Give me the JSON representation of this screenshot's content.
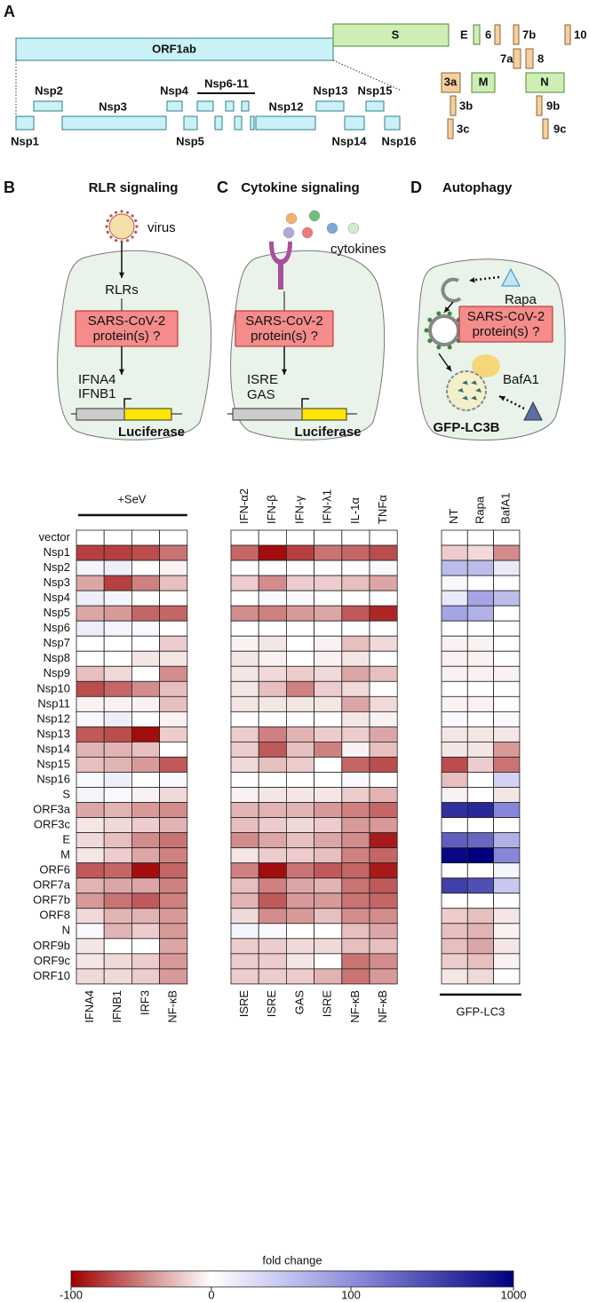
{
  "panel_labels": [
    "A",
    "B",
    "C",
    "D"
  ],
  "genome": {
    "orf1ab": "ORF1ab",
    "s": "S",
    "orf_labels": [
      "E",
      "6",
      "7b",
      "10",
      "7a",
      "8",
      "3a",
      "M",
      "N",
      "3b",
      "9b",
      "3c",
      "9c"
    ],
    "nsp_labels": [
      "Nsp1",
      "Nsp2",
      "Nsp3",
      "Nsp4",
      "Nsp5",
      "Nsp6-11",
      "Nsp12",
      "Nsp13",
      "Nsp14",
      "Nsp15",
      "Nsp16"
    ]
  },
  "schematics": {
    "rlr": {
      "title": "RLR signaling",
      "virus": "virus",
      "receptor": "RLRs",
      "protein": [
        "SARS-CoV-2",
        "protein(s) ?"
      ],
      "promoters": [
        "IFNA4",
        "IFNB1"
      ],
      "reporter": "Luciferase"
    },
    "cytokine": {
      "title": "Cytokine signaling",
      "ligand": "cytokines",
      "protein": [
        "SARS-CoV-2",
        "protein(s) ?"
      ],
      "promoters": [
        "ISRE",
        "GAS"
      ],
      "reporter": "Luciferase"
    },
    "autophagy": {
      "title": "Autophagy",
      "inducer": "Rapa",
      "inhibitor": "BafA1",
      "protein": [
        "SARS-CoV-2",
        "protein(s) ?"
      ],
      "reporter": "GFP-LC3B"
    }
  },
  "chart_data": [
    {
      "type": "heatmap",
      "top_label": "+SeV",
      "rows": [
        "vector",
        "Nsp1",
        "Nsp2",
        "Nsp3",
        "Nsp4",
        "Nsp5",
        "Nsp6",
        "Nsp7",
        "Nsp8",
        "Nsp9",
        "Nsp10",
        "Nsp11",
        "Nsp12",
        "Nsp13",
        "Nsp14",
        "Nsp15",
        "Nsp16",
        "S",
        "ORF3a",
        "ORF3c",
        "E",
        "M",
        "ORF6",
        "ORF7a",
        "ORF7b",
        "ORF8",
        "N",
        "ORF9b",
        "ORF9c",
        "ORF10"
      ],
      "columns": [
        "IFNA4",
        "IFNB1",
        "IRF3",
        "NF-κB"
      ],
      "values": [
        [
          0,
          0,
          0,
          0
        ],
        [
          -75,
          -75,
          -70,
          -55
        ],
        [
          10,
          15,
          0,
          -5
        ],
        [
          -35,
          -75,
          -50,
          -25
        ],
        [
          15,
          10,
          0,
          0
        ],
        [
          -35,
          -40,
          -60,
          -60
        ],
        [
          15,
          10,
          5,
          0
        ],
        [
          0,
          0,
          0,
          -20
        ],
        [
          0,
          0,
          -10,
          -10
        ],
        [
          -25,
          -15,
          0,
          -45
        ],
        [
          -70,
          -60,
          -45,
          -25
        ],
        [
          -5,
          -5,
          -5,
          -25
        ],
        [
          5,
          15,
          0,
          -5
        ],
        [
          -65,
          -70,
          -95,
          -20
        ],
        [
          -30,
          -30,
          -25,
          0
        ],
        [
          -25,
          -30,
          -40,
          -65
        ],
        [
          5,
          15,
          0,
          5
        ],
        [
          10,
          5,
          -5,
          -15
        ],
        [
          -35,
          -30,
          -40,
          -45
        ],
        [
          -10,
          -15,
          -20,
          -30
        ],
        [
          -15,
          -25,
          -45,
          -55
        ],
        [
          -10,
          -20,
          -35,
          -50
        ],
        [
          -65,
          -60,
          -95,
          -60
        ],
        [
          -30,
          -35,
          -35,
          -50
        ],
        [
          -40,
          -55,
          -65,
          -50
        ],
        [
          -15,
          -30,
          -30,
          -40
        ],
        [
          5,
          -30,
          -20,
          -40
        ],
        [
          -10,
          0,
          0,
          -35
        ],
        [
          -10,
          -15,
          -20,
          -40
        ],
        [
          -15,
          -15,
          -20,
          -40
        ]
      ]
    },
    {
      "type": "heatmap",
      "columns": [
        "IFN-α2",
        "IFN-β",
        "IFN-γ",
        "IFN-λ1",
        "IL-1α",
        "TNFα"
      ],
      "x_labels": [
        "ISRE",
        "ISRE",
        "GAS",
        "ISRE",
        "NF-κB",
        "NF-κB"
      ],
      "values": [
        [
          0,
          0,
          0,
          0,
          0,
          0
        ],
        [
          -60,
          -95,
          -75,
          -55,
          -60,
          -70
        ],
        [
          0,
          0,
          0,
          0,
          0,
          5
        ],
        [
          -20,
          -45,
          -20,
          -20,
          -25,
          -35
        ],
        [
          0,
          5,
          5,
          0,
          0,
          0
        ],
        [
          -45,
          -50,
          -40,
          -35,
          -65,
          -85
        ],
        [
          0,
          0,
          0,
          0,
          0,
          0
        ],
        [
          -5,
          -10,
          0,
          -5,
          -25,
          -15
        ],
        [
          -10,
          -5,
          0,
          -5,
          -10,
          0
        ],
        [
          -10,
          -15,
          -20,
          -15,
          -35,
          -25
        ],
        [
          -10,
          -25,
          -50,
          -20,
          -15,
          0
        ],
        [
          -10,
          -10,
          -10,
          -10,
          -35,
          -15
        ],
        [
          0,
          0,
          0,
          0,
          -10,
          -5
        ],
        [
          -20,
          -50,
          -30,
          -20,
          -20,
          -35
        ],
        [
          -20,
          -65,
          -25,
          -50,
          -5,
          -25
        ],
        [
          -15,
          -25,
          -20,
          0,
          -60,
          -70
        ],
        [
          0,
          0,
          0,
          0,
          5,
          0
        ],
        [
          -5,
          -10,
          -10,
          -10,
          -20,
          -30
        ],
        [
          -30,
          -30,
          -30,
          -40,
          -50,
          -60
        ],
        [
          -25,
          -20,
          -15,
          -20,
          -40,
          -40
        ],
        [
          -45,
          -35,
          -25,
          -35,
          -45,
          -90
        ],
        [
          -10,
          -20,
          -20,
          -25,
          -50,
          -60
        ],
        [
          -50,
          -95,
          -55,
          -65,
          -60,
          -90
        ],
        [
          -25,
          -50,
          -35,
          -30,
          -55,
          -65
        ],
        [
          -30,
          -65,
          -40,
          -40,
          -55,
          -60
        ],
        [
          -15,
          -45,
          -40,
          -25,
          -45,
          -45
        ],
        [
          10,
          5,
          0,
          0,
          -25,
          -35
        ],
        [
          -20,
          -20,
          -15,
          -15,
          -25,
          -25
        ],
        [
          -20,
          -20,
          -10,
          0,
          -55,
          -45
        ],
        [
          -20,
          -20,
          -20,
          -30,
          -55,
          -40
        ]
      ]
    },
    {
      "type": "heatmap",
      "columns": [
        "NT",
        "Rapa",
        "BafA1"
      ],
      "bottom_label": "GFP-LC3",
      "values": [
        [
          0,
          0,
          0
        ],
        [
          -20,
          -15,
          -45
        ],
        [
          60,
          60,
          20
        ],
        [
          5,
          0,
          0
        ],
        [
          20,
          80,
          60
        ],
        [
          80,
          70,
          0
        ],
        [
          0,
          0,
          0
        ],
        [
          -5,
          -5,
          0
        ],
        [
          -5,
          -5,
          0
        ],
        [
          -5,
          -5,
          -5
        ],
        [
          0,
          0,
          0
        ],
        [
          -5,
          -5,
          0
        ],
        [
          5,
          0,
          5
        ],
        [
          -10,
          -10,
          -10
        ],
        [
          -10,
          -10,
          -40
        ],
        [
          -70,
          -20,
          -55
        ],
        [
          -25,
          0,
          40
        ],
        [
          -5,
          0,
          -10
        ],
        [
          700,
          750,
          150
        ],
        [
          0,
          0,
          0
        ],
        [
          400,
          350,
          70
        ],
        [
          950,
          1000,
          150
        ],
        [
          0,
          0,
          10
        ],
        [
          600,
          500,
          50
        ],
        [
          0,
          0,
          0
        ],
        [
          -20,
          -25,
          -10
        ],
        [
          -25,
          -30,
          -5
        ],
        [
          -25,
          -35,
          -10
        ],
        [
          -20,
          -25,
          -5
        ],
        [
          -10,
          -15,
          0
        ]
      ]
    }
  ],
  "colorbar": {
    "label": "fold change",
    "ticks": [
      -100,
      0,
      100,
      1000
    ],
    "colors": [
      "#9e0000",
      "#ffffff",
      "#8f8fde",
      "#00007f"
    ]
  }
}
